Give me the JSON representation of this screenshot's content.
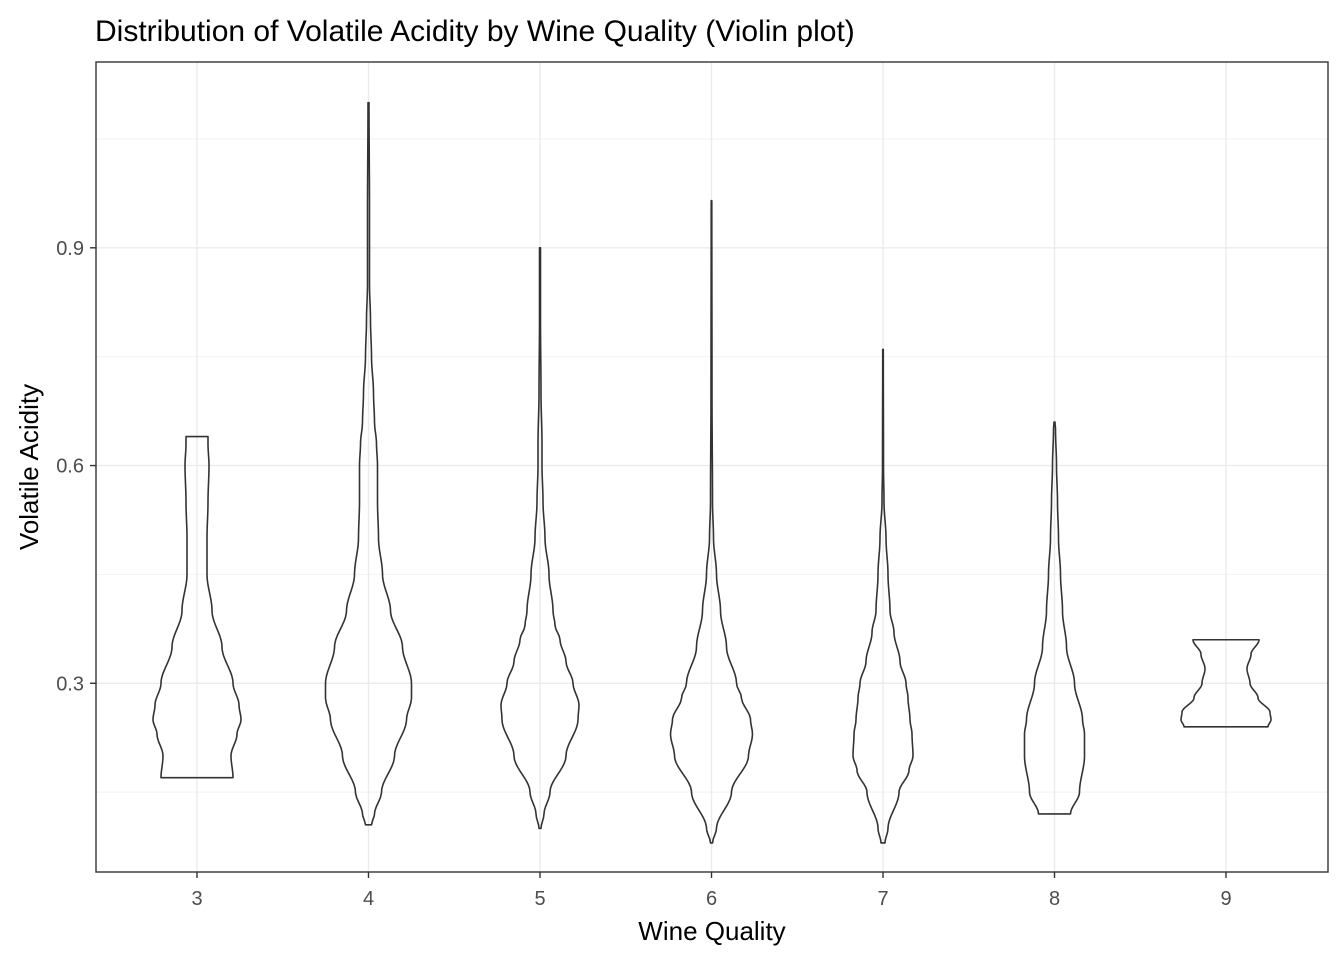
{
  "chart_data": {
    "type": "violin",
    "title": "Distribution of Volatile Acidity by Wine Quality (Violin plot)",
    "xlabel": "Wine Quality",
    "ylabel": "Volatile Acidity",
    "categories": [
      "3",
      "4",
      "5",
      "6",
      "7",
      "8",
      "9"
    ],
    "y_ticks": [
      0.3,
      0.6,
      0.9
    ],
    "y_tick_labels": [
      "0.3",
      "0.6",
      "0.9"
    ],
    "ylim": [
      0.04,
      1.156
    ],
    "grid": true,
    "theme": "white background with light gray grid and dark panel border",
    "colors": {
      "outline": "#333333",
      "grid": "#ebebeb",
      "text": "#000000",
      "tick_text": "#4d4d4d"
    },
    "violins": [
      {
        "category": "3",
        "min": 0.17,
        "max": 0.64,
        "profile": [
          [
            0.17,
            0.36
          ],
          [
            0.2,
            0.34
          ],
          [
            0.23,
            0.4
          ],
          [
            0.25,
            0.44
          ],
          [
            0.27,
            0.42
          ],
          [
            0.3,
            0.36
          ],
          [
            0.35,
            0.25
          ],
          [
            0.4,
            0.15
          ],
          [
            0.45,
            0.1
          ],
          [
            0.5,
            0.1
          ],
          [
            0.55,
            0.11
          ],
          [
            0.6,
            0.12
          ],
          [
            0.63,
            0.11
          ],
          [
            0.64,
            0.11
          ]
        ]
      },
      {
        "category": "4",
        "min": 0.105,
        "max": 1.1,
        "profile": [
          [
            0.105,
            0.03
          ],
          [
            0.12,
            0.06
          ],
          [
            0.15,
            0.13
          ],
          [
            0.2,
            0.26
          ],
          [
            0.25,
            0.38
          ],
          [
            0.28,
            0.43
          ],
          [
            0.3,
            0.43
          ],
          [
            0.35,
            0.34
          ],
          [
            0.4,
            0.22
          ],
          [
            0.45,
            0.14
          ],
          [
            0.5,
            0.1
          ],
          [
            0.55,
            0.09
          ],
          [
            0.6,
            0.09
          ],
          [
            0.63,
            0.08
          ],
          [
            0.66,
            0.06
          ],
          [
            0.7,
            0.05
          ],
          [
            0.75,
            0.03
          ],
          [
            0.8,
            0.02
          ],
          [
            0.85,
            0.01
          ],
          [
            0.95,
            0.01
          ],
          [
            1.1,
            0.005
          ]
        ]
      },
      {
        "category": "5",
        "min": 0.1,
        "max": 0.9,
        "profile": [
          [
            0.1,
            0.01
          ],
          [
            0.12,
            0.04
          ],
          [
            0.15,
            0.1
          ],
          [
            0.2,
            0.26
          ],
          [
            0.25,
            0.38
          ],
          [
            0.27,
            0.39
          ],
          [
            0.3,
            0.33
          ],
          [
            0.33,
            0.26
          ],
          [
            0.36,
            0.2
          ],
          [
            0.38,
            0.15
          ],
          [
            0.4,
            0.13
          ],
          [
            0.45,
            0.09
          ],
          [
            0.5,
            0.05
          ],
          [
            0.55,
            0.03
          ],
          [
            0.6,
            0.02
          ],
          [
            0.63,
            0.02
          ],
          [
            0.7,
            0.01
          ],
          [
            0.8,
            0.005
          ],
          [
            0.9,
            0.005
          ]
        ]
      },
      {
        "category": "6",
        "min": 0.08,
        "max": 0.965,
        "profile": [
          [
            0.08,
            0.01
          ],
          [
            0.1,
            0.05
          ],
          [
            0.15,
            0.2
          ],
          [
            0.2,
            0.37
          ],
          [
            0.23,
            0.41
          ],
          [
            0.25,
            0.39
          ],
          [
            0.28,
            0.3
          ],
          [
            0.3,
            0.25
          ],
          [
            0.35,
            0.15
          ],
          [
            0.4,
            0.09
          ],
          [
            0.45,
            0.05
          ],
          [
            0.5,
            0.02
          ],
          [
            0.55,
            0.01
          ],
          [
            0.7,
            0.005
          ],
          [
            0.965,
            0.003
          ]
        ]
      },
      {
        "category": "7",
        "min": 0.08,
        "max": 0.76,
        "profile": [
          [
            0.08,
            0.02
          ],
          [
            0.1,
            0.05
          ],
          [
            0.15,
            0.16
          ],
          [
            0.18,
            0.26
          ],
          [
            0.2,
            0.3
          ],
          [
            0.23,
            0.29
          ],
          [
            0.25,
            0.27
          ],
          [
            0.28,
            0.25
          ],
          [
            0.3,
            0.23
          ],
          [
            0.33,
            0.17
          ],
          [
            0.37,
            0.11
          ],
          [
            0.4,
            0.07
          ],
          [
            0.45,
            0.05
          ],
          [
            0.5,
            0.03
          ],
          [
            0.55,
            0.01
          ],
          [
            0.6,
            0.005
          ],
          [
            0.76,
            0.003
          ]
        ]
      },
      {
        "category": "8",
        "min": 0.12,
        "max": 0.66,
        "profile": [
          [
            0.12,
            0.16
          ],
          [
            0.15,
            0.25
          ],
          [
            0.2,
            0.3
          ],
          [
            0.23,
            0.3
          ],
          [
            0.25,
            0.28
          ],
          [
            0.3,
            0.2
          ],
          [
            0.35,
            0.12
          ],
          [
            0.4,
            0.08
          ],
          [
            0.45,
            0.06
          ],
          [
            0.5,
            0.04
          ],
          [
            0.55,
            0.03
          ],
          [
            0.6,
            0.02
          ],
          [
            0.65,
            0.01
          ],
          [
            0.66,
            0.005
          ]
        ]
      },
      {
        "category": "9",
        "min": 0.24,
        "max": 0.36,
        "profile": [
          [
            0.24,
            0.42
          ],
          [
            0.25,
            0.45
          ],
          [
            0.26,
            0.44
          ],
          [
            0.28,
            0.32
          ],
          [
            0.3,
            0.24
          ],
          [
            0.32,
            0.21
          ],
          [
            0.34,
            0.25
          ],
          [
            0.36,
            0.33
          ]
        ]
      }
    ]
  }
}
